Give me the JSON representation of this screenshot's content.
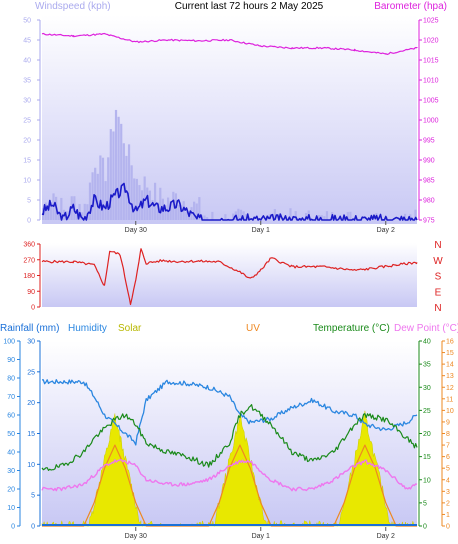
{
  "page_title": "Current last 72 hours 2 May 2025",
  "colors": {
    "windspeed": "#1a1ac8",
    "gust": "#b4b4ee",
    "barometer": "#dd22dd",
    "direction": "#dd2222",
    "rainfall": "#1a70d8",
    "humidity": "#2a86e0",
    "solar": "#e8e800",
    "uv": "#ee8822",
    "temperature": "#1a8a1a",
    "dewpoint": "#ee77ee",
    "panel_bg_top": "#ffffff",
    "panel_bg_bottom": "#c8c8f4"
  },
  "chart_data": [
    {
      "type": "line",
      "labels": {
        "left": "Windspeed (kph)",
        "right": "Barometer (hpa)"
      },
      "left_ticks": [
        "0",
        "5",
        "10",
        "15",
        "20",
        "25",
        "30",
        "35",
        "40",
        "45",
        "50"
      ],
      "right_ticks": [
        "975",
        "980",
        "985",
        "990",
        "995",
        "1000",
        "1005",
        "1010",
        "1015",
        "1020",
        "1025"
      ],
      "x_labels": [
        "Day 30",
        "Day 1",
        "Day 2"
      ],
      "left_ylim": [
        0,
        50
      ],
      "right_ylim": [
        975,
        1025
      ],
      "x_range_hours": [
        0,
        72
      ],
      "series": [
        {
          "name": "Barometer",
          "axis": "right",
          "x": [
            0,
            6,
            12,
            18,
            24,
            30,
            36,
            42,
            48,
            54,
            60,
            66,
            72
          ],
          "values": [
            1021.5,
            1021.0,
            1021.5,
            1019.5,
            1020.0,
            1019.8,
            1020.0,
            1018.5,
            1018.0,
            1018.0,
            1017.5,
            1016.5,
            1018.0
          ]
        },
        {
          "name": "Windspeed",
          "axis": "left",
          "x": [
            0,
            2,
            4,
            6,
            8,
            10,
            12,
            14,
            16,
            18,
            20,
            22,
            24,
            26,
            28,
            30,
            32,
            72
          ],
          "values": [
            2,
            4,
            0,
            3,
            0,
            5,
            3,
            6,
            8,
            2,
            5,
            3,
            3,
            4,
            2,
            0,
            0,
            0
          ]
        },
        {
          "name": "Gust",
          "axis": "left",
          "x": [
            0,
            2,
            4,
            6,
            8,
            10,
            12,
            14,
            16,
            18,
            20,
            22,
            24,
            26,
            28,
            30,
            32,
            34,
            72
          ],
          "values": [
            3,
            7,
            2,
            5,
            3,
            15,
            12,
            28,
            18,
            10,
            9,
            6,
            5,
            6,
            4,
            3,
            0,
            0,
            0
          ]
        }
      ]
    },
    {
      "type": "line",
      "right_letters": [
        "N",
        "W",
        "S",
        "E",
        "N"
      ],
      "left_ticks": [
        "0",
        "90",
        "180",
        "270",
        "360"
      ],
      "ylim": [
        0,
        360
      ],
      "series": [
        {
          "name": "Direction",
          "x": [
            0,
            6,
            10,
            12,
            13,
            15,
            17,
            18,
            19,
            20,
            23,
            26,
            30,
            34,
            38,
            40,
            42,
            44,
            48,
            54,
            60,
            62,
            68,
            72
          ],
          "values": [
            260,
            258,
            240,
            120,
            320,
            300,
            20,
            150,
            330,
            250,
            265,
            260,
            262,
            258,
            200,
            160,
            210,
            280,
            230,
            230,
            210,
            215,
            240,
            255
          ]
        }
      ]
    },
    {
      "type": "line",
      "labels": {
        "rain": "Rainfall (mm)",
        "hum": "Humidity",
        "solar": "Solar",
        "uv": "UV",
        "temp": "Temperature (°C)",
        "dew": "Dew Point (°C)"
      },
      "left_ticks_a": [
        "0",
        "10",
        "20",
        "30",
        "40",
        "50",
        "60",
        "70",
        "80",
        "90",
        "100"
      ],
      "left_ticks_b": [
        "0",
        "5",
        "10",
        "15",
        "20",
        "25",
        "30"
      ],
      "right_ticks_a": [
        "0",
        "5",
        "10",
        "15",
        "20",
        "25",
        "30",
        "35",
        "40"
      ],
      "right_ticks_b": [
        "0",
        "1",
        "2",
        "3",
        "4",
        "5",
        "6",
        "7",
        "8",
        "9",
        "10",
        "11",
        "12",
        "13",
        "14",
        "15",
        "16"
      ],
      "x_labels": [
        "Day 30",
        "Day 1",
        "Day 2"
      ],
      "humidity_ylim": [
        0,
        100
      ],
      "temperature_ylim": [
        0,
        40
      ],
      "uv_ylim": [
        0,
        16
      ],
      "solar_peak_hours": [
        14,
        38,
        62
      ],
      "series": [
        {
          "name": "Humidity",
          "x": [
            0,
            4,
            8,
            10,
            12,
            14,
            16,
            18,
            20,
            24,
            28,
            32,
            36,
            38,
            40,
            44,
            48,
            52,
            56,
            60,
            62,
            66,
            70,
            72
          ],
          "values": [
            78,
            78,
            78,
            70,
            60,
            55,
            50,
            45,
            68,
            78,
            77,
            75,
            70,
            60,
            56,
            58,
            64,
            68,
            62,
            60,
            55,
            52,
            56,
            60
          ]
        },
        {
          "name": "Temperature",
          "x": [
            0,
            4,
            8,
            10,
            12,
            14,
            16,
            18,
            20,
            24,
            28,
            32,
            36,
            38,
            40,
            44,
            48,
            52,
            56,
            60,
            62,
            66,
            70,
            72
          ],
          "values": [
            12,
            13,
            16,
            19,
            21,
            23,
            24,
            22,
            18,
            16,
            15,
            13,
            18,
            24,
            26,
            22,
            16,
            14,
            16,
            22,
            24,
            23,
            19,
            17
          ]
        },
        {
          "name": "Dew Point",
          "x": [
            0,
            4,
            8,
            10,
            12,
            14,
            16,
            18,
            20,
            24,
            28,
            32,
            36,
            38,
            40,
            44,
            48,
            52,
            56,
            60,
            62,
            66,
            70,
            72
          ],
          "values": [
            8,
            8,
            9,
            11,
            13,
            14,
            14,
            13,
            10,
            9,
            9,
            10,
            13,
            14,
            14,
            10,
            8,
            8,
            10,
            13,
            14,
            12,
            8,
            9
          ]
        },
        {
          "name": "UV",
          "x": [
            0,
            8,
            10,
            12,
            14,
            16,
            18,
            20,
            32,
            34,
            36,
            38,
            40,
            42,
            44,
            56,
            58,
            60,
            62,
            64,
            66,
            68,
            72
          ],
          "values": [
            0,
            0,
            2,
            5,
            7,
            5,
            2,
            0,
            0,
            2,
            5,
            7,
            5,
            2,
            0,
            0,
            2,
            5,
            7,
            5,
            2,
            0,
            0
          ]
        },
        {
          "name": "Solar",
          "x": [
            0,
            9,
            11,
            13,
            14,
            15,
            17,
            19,
            33,
            35,
            37,
            38,
            39,
            41,
            43,
            57,
            59,
            61,
            62,
            63,
            65,
            67,
            72
          ],
          "values": [
            0,
            0,
            40,
            80,
            100,
            80,
            40,
            0,
            0,
            40,
            80,
            100,
            80,
            40,
            0,
            0,
            40,
            80,
            100,
            80,
            40,
            0,
            0
          ]
        },
        {
          "name": "Rainfall",
          "x": [
            0,
            72
          ],
          "values": [
            0,
            0
          ]
        }
      ]
    }
  ]
}
